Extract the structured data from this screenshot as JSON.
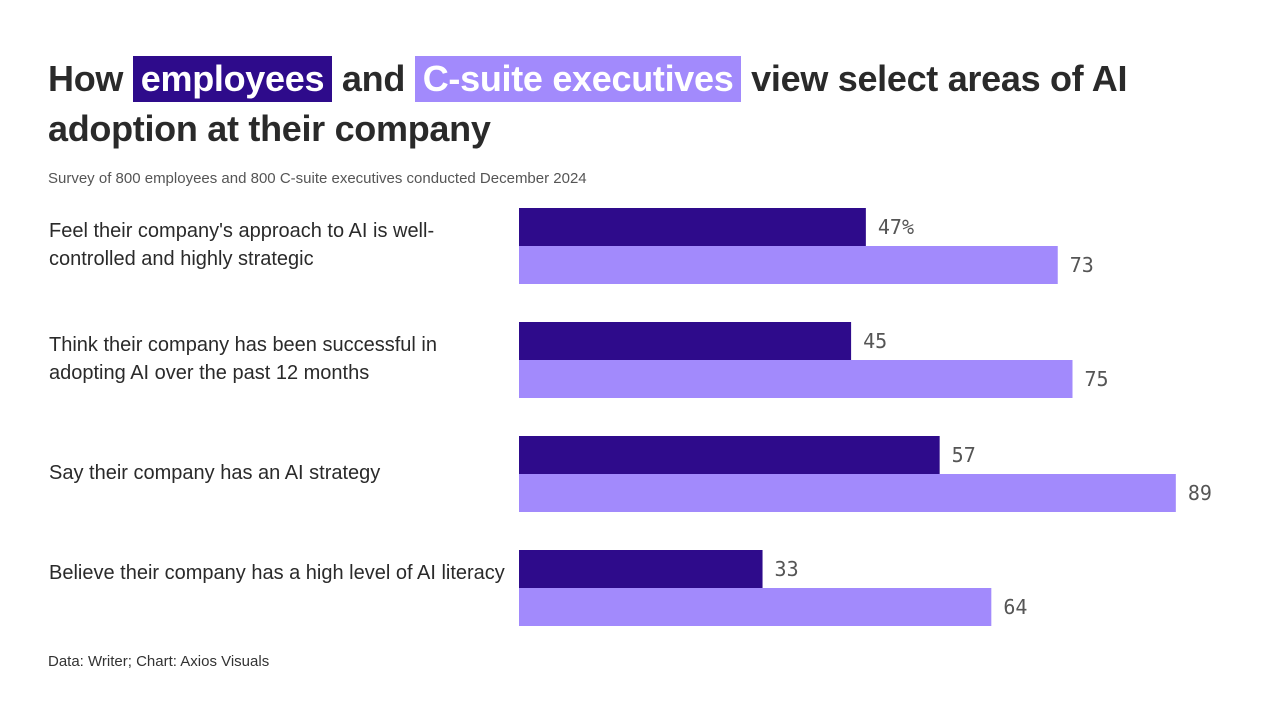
{
  "title": {
    "prefix": "How",
    "highlight_employees": "employees",
    "conjunction": "and",
    "highlight_executives": "C-suite executives",
    "suffix": "view select areas of AI adoption at their company"
  },
  "subtitle": "Survey of 800 employees and 800 C-suite executives conducted December 2024",
  "source": "Data: Writer; Chart: Axios Visuals",
  "colors": {
    "employees": "#2e0b8b",
    "executives": "#a28afc"
  },
  "chart_data": {
    "type": "bar",
    "orientation": "horizontal",
    "title": "How employees and C-suite executives view select areas of AI adoption at their company",
    "subtitle": "Survey of 800 employees and 800 C-suite executives conducted December 2024",
    "categories": [
      "Feel their company's approach to AI is well-controlled and highly strategic",
      "Think their company has been successful in adopting AI over the past 12 months",
      "Say their company has an AI strategy",
      "Believe their company has a high level of AI literacy"
    ],
    "series": [
      {
        "name": "employees",
        "values": [
          47,
          45,
          57,
          33
        ],
        "labels": [
          "47%",
          "45",
          "57",
          "33"
        ]
      },
      {
        "name": "C-suite executives",
        "values": [
          73,
          75,
          89,
          64
        ],
        "labels": [
          "73",
          "75",
          "89",
          "64"
        ]
      }
    ],
    "unit": "%",
    "xlim": [
      0,
      100
    ],
    "xlabel": "",
    "ylabel": "",
    "grid": false,
    "legend": "inline-title"
  }
}
